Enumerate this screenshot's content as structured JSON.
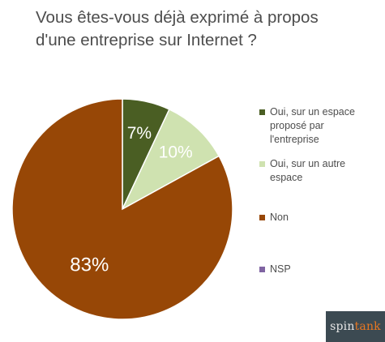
{
  "title": {
    "line1": "Vous êtes-vous déjà exprimé à propos",
    "line2": "d'une entreprise sur Internet ?"
  },
  "chart_data": {
    "type": "pie",
    "title": "Vous êtes-vous déjà exprimé à propos d'une entreprise sur Internet ?",
    "categories": [
      "Oui, sur un espace proposé par l'entreprise",
      "Oui, sur un autre espace",
      "Non",
      "NSP"
    ],
    "values": [
      7,
      10,
      83,
      0
    ],
    "labels": [
      "7%",
      "10%",
      "83%",
      ""
    ],
    "colors": [
      "#4a5e23",
      "#cfe2b0",
      "#974706",
      "#8064a2"
    ],
    "legend_position": "right"
  },
  "legend": [
    {
      "label": "Oui, sur un espace proposé par l'entreprise"
    },
    {
      "label": "Oui, sur un autre espace"
    },
    {
      "label": "Non"
    },
    {
      "label": "NSP"
    }
  ],
  "logo": {
    "part1": "spin",
    "part2": "tank"
  }
}
